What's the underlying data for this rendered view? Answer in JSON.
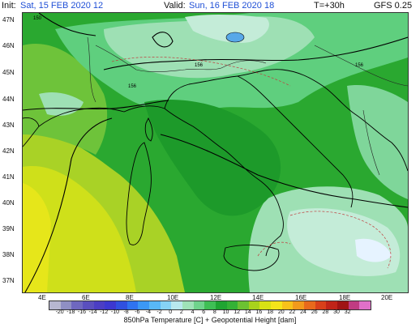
{
  "header": {
    "init_label": "Init:",
    "init_value": "Sat, 15 FEB 2020 12",
    "valid_label": "Valid:",
    "valid_value": "Sun, 16 FEB 2020 18",
    "lead_time": "T=+30h",
    "model": "GFS 0.25"
  },
  "axes": {
    "lat_labels": [
      "47N",
      "46N",
      "45N",
      "44N",
      "43N",
      "42N",
      "41N",
      "40N",
      "39N",
      "38N",
      "37N"
    ],
    "lon_labels": [
      "4E",
      "6E",
      "8E",
      "10E",
      "12E",
      "14E",
      "16E",
      "18E",
      "20E"
    ]
  },
  "contour_labels": [
    "150",
    "156",
    "156",
    "156"
  ],
  "colorbar": {
    "ticks": [
      "-20",
      "-18",
      "-16",
      "-14",
      "-12",
      "-10",
      "-8",
      "-6",
      "-4",
      "-2",
      "0",
      "2",
      "4",
      "6",
      "8",
      "10",
      "12",
      "14",
      "16",
      "18",
      "20",
      "22",
      "24",
      "26",
      "28",
      "30",
      "32"
    ],
    "colors": [
      "#b6b6d0",
      "#8f8fc4",
      "#6f68bf",
      "#5a4fbe",
      "#4b3ec4",
      "#3c38d0",
      "#3050e0",
      "#2f73f0",
      "#3b98f5",
      "#58b8f7",
      "#86d3f5",
      "#b8e8ee",
      "#9fe2b8",
      "#6fd38c",
      "#3fbf55",
      "#1fa532",
      "#34b236",
      "#6cc232",
      "#a8d21c",
      "#d8e214",
      "#f4e51a",
      "#f7c21a",
      "#f29a1c",
      "#e86a1c",
      "#d8401a",
      "#c02418",
      "#a01414",
      "#c03c82",
      "#e070c8"
    ]
  },
  "footer": {
    "title": "850hPa Temperature [C] + Geopotential Height [dam]"
  }
}
